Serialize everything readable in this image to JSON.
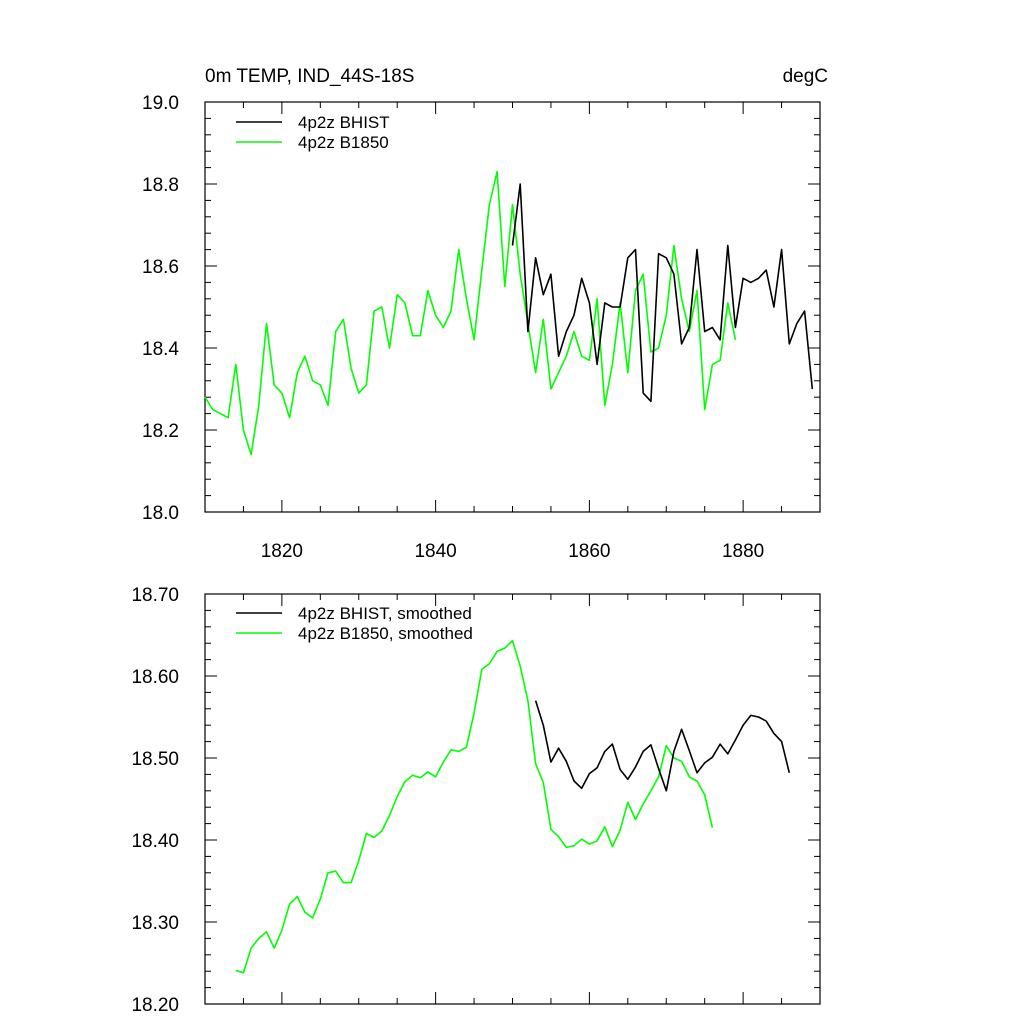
{
  "chart_data": [
    {
      "type": "line",
      "title": "0m TEMP, IND_44S-18S",
      "units": "degC",
      "xlim": [
        1810,
        1890
      ],
      "ylim": [
        18.0,
        19.0
      ],
      "xticks": [
        1820,
        1840,
        1860,
        1880
      ],
      "xtick_labels": [
        "1820",
        "1840",
        "1860",
        "1880"
      ],
      "yticks": [
        18.0,
        18.2,
        18.4,
        18.6,
        18.8,
        19.0
      ],
      "ytick_labels": [
        "18.0",
        "18.2",
        "18.4",
        "18.6",
        "18.8",
        "19.0"
      ],
      "legend_position": "top-left",
      "series": [
        {
          "name": "4p2z BHIST",
          "color": "#000000",
          "x": [
            1850,
            1851,
            1852,
            1853,
            1854,
            1855,
            1856,
            1857,
            1858,
            1859,
            1860,
            1861,
            1862,
            1863,
            1864,
            1865,
            1866,
            1867,
            1868,
            1869,
            1870,
            1871,
            1872,
            1873,
            1874,
            1875,
            1876,
            1877,
            1878,
            1879,
            1880,
            1881,
            1882,
            1883,
            1884,
            1885,
            1886,
            1887,
            1888,
            1889
          ],
          "y": [
            18.65,
            18.8,
            18.44,
            18.62,
            18.53,
            18.58,
            18.38,
            18.44,
            18.48,
            18.57,
            18.51,
            18.36,
            18.51,
            18.5,
            18.5,
            18.62,
            18.64,
            18.29,
            18.27,
            18.63,
            18.62,
            18.58,
            18.41,
            18.45,
            18.64,
            18.44,
            18.45,
            18.42,
            18.65,
            18.45,
            18.57,
            18.56,
            18.57,
            18.59,
            18.5,
            18.64,
            18.41,
            18.46,
            18.49,
            18.3
          ]
        },
        {
          "name": "4p2z B1850",
          "color": "#00ff00",
          "x": [
            1810,
            1811,
            1812,
            1813,
            1814,
            1815,
            1816,
            1817,
            1818,
            1819,
            1820,
            1821,
            1822,
            1823,
            1824,
            1825,
            1826,
            1827,
            1828,
            1829,
            1830,
            1831,
            1832,
            1833,
            1834,
            1835,
            1836,
            1837,
            1838,
            1839,
            1840,
            1841,
            1842,
            1843,
            1844,
            1845,
            1846,
            1847,
            1848,
            1849,
            1850,
            1851,
            1852,
            1853,
            1854,
            1855,
            1856,
            1857,
            1858,
            1859,
            1860,
            1861,
            1862,
            1863,
            1864,
            1865,
            1866,
            1867,
            1868,
            1869,
            1870,
            1871,
            1872,
            1873,
            1874,
            1875,
            1876,
            1877,
            1878,
            1879
          ],
          "y": [
            18.28,
            18.25,
            18.24,
            18.23,
            18.36,
            18.2,
            18.14,
            18.26,
            18.46,
            18.31,
            18.29,
            18.23,
            18.34,
            18.38,
            18.32,
            18.31,
            18.26,
            18.44,
            18.47,
            18.35,
            18.29,
            18.31,
            18.49,
            18.5,
            18.4,
            18.53,
            18.51,
            18.43,
            18.43,
            18.54,
            18.48,
            18.45,
            18.49,
            18.64,
            18.52,
            18.42,
            18.59,
            18.75,
            18.83,
            18.55,
            18.75,
            18.58,
            18.46,
            18.34,
            18.47,
            18.3,
            18.34,
            18.38,
            18.44,
            18.38,
            18.37,
            18.52,
            18.26,
            18.36,
            18.51,
            18.34,
            18.54,
            18.58,
            18.39,
            18.4,
            18.48,
            18.65,
            18.52,
            18.44,
            18.54,
            18.25,
            18.36,
            18.37,
            18.51,
            18.42
          ]
        }
      ]
    },
    {
      "type": "line",
      "title": "",
      "xlim": [
        1810,
        1890
      ],
      "ylim": [
        18.2,
        18.7
      ],
      "xticks": [
        1820,
        1840,
        1860,
        1880
      ],
      "yticks": [
        18.2,
        18.3,
        18.4,
        18.5,
        18.6,
        18.7
      ],
      "ytick_labels": [
        "18.20",
        "18.30",
        "18.40",
        "18.50",
        "18.60",
        "18.70"
      ],
      "legend_position": "top-left",
      "series": [
        {
          "name": "4p2z BHIST, smoothed",
          "color": "#000000",
          "x": [
            1853,
            1854,
            1855,
            1856,
            1857,
            1858,
            1859,
            1860,
            1861,
            1862,
            1863,
            1864,
            1865,
            1866,
            1867,
            1868,
            1869,
            1870,
            1871,
            1872,
            1873,
            1874,
            1875,
            1876,
            1877,
            1878,
            1879,
            1880,
            1881,
            1882,
            1883,
            1884,
            1885,
            1886
          ],
          "y": [
            18.57,
            18.54,
            18.495,
            18.512,
            18.496,
            18.472,
            18.463,
            18.481,
            18.488,
            18.508,
            18.517,
            18.486,
            18.474,
            18.489,
            18.508,
            18.516,
            18.487,
            18.46,
            18.508,
            18.535,
            18.509,
            18.482,
            18.494,
            18.501,
            18.517,
            18.505,
            18.522,
            18.54,
            18.552,
            18.55,
            18.545,
            18.53,
            18.52,
            18.482
          ]
        },
        {
          "name": "4p2z B1850, smoothed",
          "color": "#00ff00",
          "x": [
            1814,
            1815,
            1816,
            1817,
            1818,
            1819,
            1820,
            1821,
            1822,
            1823,
            1824,
            1825,
            1826,
            1827,
            1828,
            1829,
            1830,
            1831,
            1832,
            1833,
            1834,
            1835,
            1836,
            1837,
            1838,
            1839,
            1840,
            1841,
            1842,
            1843,
            1844,
            1845,
            1846,
            1847,
            1848,
            1849,
            1850,
            1851,
            1852,
            1853,
            1854,
            1855,
            1856,
            1857,
            1858,
            1859,
            1860,
            1861,
            1862,
            1863,
            1864,
            1865,
            1866,
            1867,
            1868,
            1869,
            1870,
            1871,
            1872,
            1873,
            1874,
            1875,
            1876
          ],
          "y": [
            18.241,
            18.238,
            18.268,
            18.28,
            18.288,
            18.268,
            18.29,
            18.322,
            18.331,
            18.312,
            18.305,
            18.328,
            18.36,
            18.362,
            18.348,
            18.348,
            18.375,
            18.408,
            18.403,
            18.411,
            18.43,
            18.453,
            18.471,
            18.479,
            18.476,
            18.483,
            18.477,
            18.495,
            18.51,
            18.508,
            18.513,
            18.555,
            18.608,
            18.615,
            18.63,
            18.634,
            18.643,
            18.612,
            18.57,
            18.493,
            18.47,
            18.413,
            18.404,
            18.391,
            18.393,
            18.401,
            18.395,
            18.399,
            18.416,
            18.392,
            18.412,
            18.446,
            18.425,
            18.444,
            18.46,
            18.477,
            18.515,
            18.5,
            18.496,
            18.477,
            18.472,
            18.455,
            18.415
          ]
        }
      ]
    }
  ]
}
